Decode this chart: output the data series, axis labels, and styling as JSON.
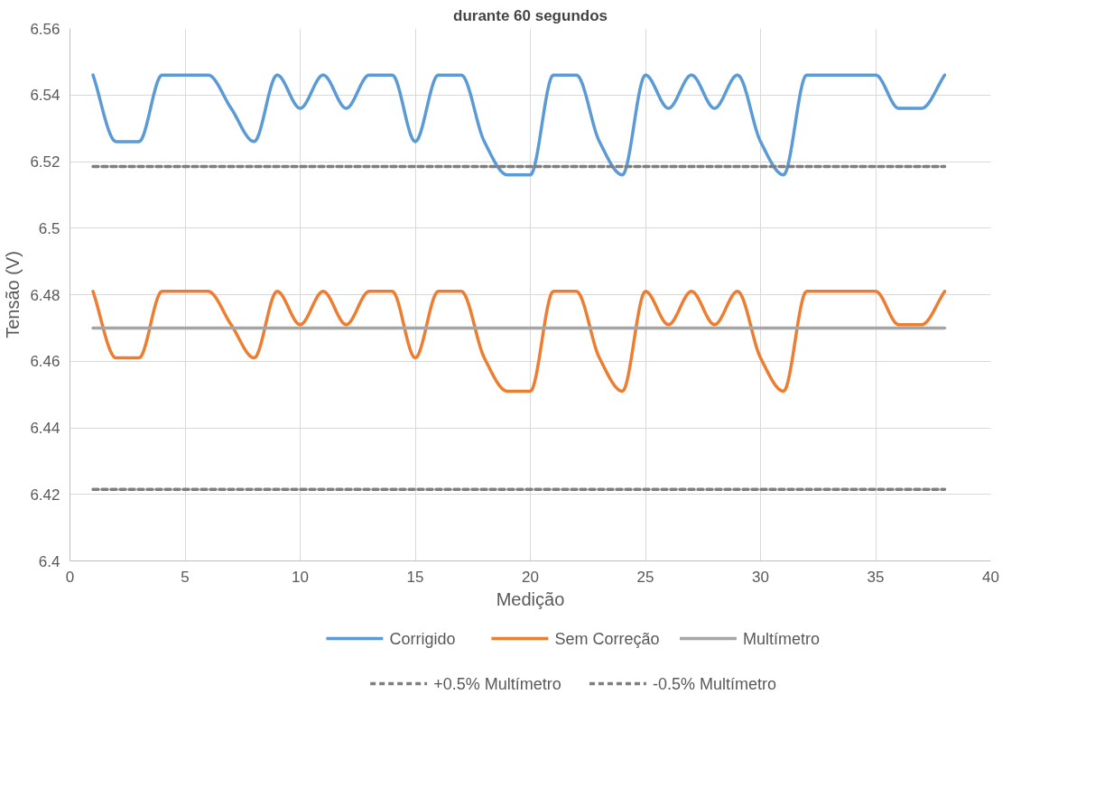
{
  "chart_data": {
    "type": "line",
    "title": "durante 60 segundos",
    "xlabel": "Medição",
    "ylabel": "Tensão (V)",
    "x": [
      1,
      2,
      3,
      4,
      5,
      6,
      7,
      8,
      9,
      10,
      11,
      12,
      13,
      14,
      15,
      16,
      17,
      18,
      19,
      20,
      21,
      22,
      23,
      24,
      25,
      26,
      27,
      28,
      29,
      30,
      31,
      32,
      33,
      34,
      35,
      36,
      37,
      38
    ],
    "series": [
      {
        "name": "Corrigido",
        "color": "#5b9bd5",
        "values": [
          6.546,
          6.526,
          6.526,
          6.546,
          6.546,
          6.546,
          6.536,
          6.526,
          6.546,
          6.536,
          6.546,
          6.536,
          6.546,
          6.546,
          6.526,
          6.546,
          6.546,
          6.526,
          6.516,
          6.516,
          6.546,
          6.546,
          6.526,
          6.516,
          6.546,
          6.536,
          6.546,
          6.536,
          6.546,
          6.526,
          6.516,
          6.546,
          6.546,
          6.546,
          6.546,
          6.536,
          6.536,
          6.546
        ]
      },
      {
        "name": "Sem Correção",
        "color": "#ed7d31",
        "values": [
          6.481,
          6.461,
          6.461,
          6.481,
          6.481,
          6.481,
          6.471,
          6.461,
          6.481,
          6.471,
          6.481,
          6.471,
          6.481,
          6.481,
          6.461,
          6.481,
          6.481,
          6.461,
          6.451,
          6.451,
          6.481,
          6.481,
          6.461,
          6.451,
          6.481,
          6.471,
          6.481,
          6.471,
          6.481,
          6.461,
          6.451,
          6.481,
          6.481,
          6.481,
          6.481,
          6.471,
          6.471,
          6.481
        ]
      },
      {
        "name": "Multímetro",
        "color": "#a5a5a5",
        "values": [
          6.47,
          6.47,
          6.47,
          6.47,
          6.47,
          6.47,
          6.47,
          6.47,
          6.47,
          6.47,
          6.47,
          6.47,
          6.47,
          6.47,
          6.47,
          6.47,
          6.47,
          6.47,
          6.47,
          6.47,
          6.47,
          6.47,
          6.47,
          6.47,
          6.47,
          6.47,
          6.47,
          6.47,
          6.47,
          6.47,
          6.47,
          6.47,
          6.47,
          6.47,
          6.47,
          6.47,
          6.47,
          6.47
        ]
      },
      {
        "name": "+0.5% Multímetro",
        "color": "#7f7f7f",
        "values": [
          6.5185,
          6.5185,
          6.5185,
          6.5185,
          6.5185,
          6.5185,
          6.5185,
          6.5185,
          6.5185,
          6.5185,
          6.5185,
          6.5185,
          6.5185,
          6.5185,
          6.5185,
          6.5185,
          6.5185,
          6.5185,
          6.5185,
          6.5185,
          6.5185,
          6.5185,
          6.5185,
          6.5185,
          6.5185,
          6.5185,
          6.5185,
          6.5185,
          6.5185,
          6.5185,
          6.5185,
          6.5185,
          6.5185,
          6.5185,
          6.5185,
          6.5185,
          6.5185,
          6.5185
        ],
        "line_style": "dashed"
      },
      {
        "name": "-0.5% Multímetro",
        "color": "#7f7f7f",
        "values": [
          6.4215,
          6.4215,
          6.4215,
          6.4215,
          6.4215,
          6.4215,
          6.4215,
          6.4215,
          6.4215,
          6.4215,
          6.4215,
          6.4215,
          6.4215,
          6.4215,
          6.4215,
          6.4215,
          6.4215,
          6.4215,
          6.4215,
          6.4215,
          6.4215,
          6.4215,
          6.4215,
          6.4215,
          6.4215,
          6.4215,
          6.4215,
          6.4215,
          6.4215,
          6.4215,
          6.4215,
          6.4215,
          6.4215,
          6.4215,
          6.4215,
          6.4215,
          6.4215,
          6.4215
        ],
        "line_style": "dashed"
      }
    ],
    "xlim": [
      0,
      40
    ],
    "xticks": [
      0,
      5,
      10,
      15,
      20,
      25,
      30,
      35,
      40
    ],
    "ylim": [
      6.4,
      6.56
    ],
    "yticks": [
      6.4,
      6.42,
      6.44,
      6.46,
      6.48,
      6.5,
      6.52,
      6.54,
      6.56
    ],
    "grid": true,
    "legend": "bottom",
    "marker": "none",
    "line_style": "solid"
  }
}
